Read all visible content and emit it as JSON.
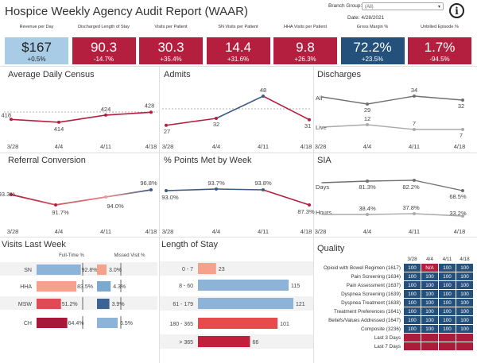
{
  "header": {
    "title": "Hospice Weekly Agency Audit Report (WAAR)",
    "branch_group_label": "Branch Group:",
    "branch_group_value": "(All)",
    "date_label": "Date: 4/28/2021",
    "info_glyph": "i"
  },
  "kpis": [
    {
      "label": "Revenue per Day",
      "value": "$167",
      "change": "+0.5%",
      "bg": "#a9cce6",
      "text": "#222222"
    },
    {
      "label": "Discharged Length of Stay",
      "value": "90.3",
      "change": "-14.7%",
      "bg": "#b51f3f",
      "text": "#ffffff"
    },
    {
      "label": "Visits per Patient",
      "value": "30.3",
      "change": "+35.4%",
      "bg": "#b51f3f",
      "text": "#ffffff"
    },
    {
      "label": "SN Visits per Patient",
      "value": "14.4",
      "change": "+31.6%",
      "bg": "#b51f3f",
      "text": "#ffffff"
    },
    {
      "label": "HHA Visits per Patient",
      "value": "9.8",
      "change": "+26.3%",
      "bg": "#b51f3f",
      "text": "#ffffff"
    },
    {
      "label": "Gross Margin %",
      "value": "72.2%",
      "change": "+23.5%",
      "bg": "#24507c",
      "text": "#ffffff"
    },
    {
      "label": "Unbilled Episode %",
      "value": "1.7%",
      "change": "-94.5%",
      "bg": "#b51f3f",
      "text": "#ffffff"
    }
  ],
  "colors": {
    "red": "#b51f3f",
    "navy": "#3d5a80",
    "light_blue": "#a9cce6",
    "mid_blue": "#5b8fc9",
    "gray_line": "#707070",
    "light_gray_line": "#aaaaaa",
    "salmon": "#f4a28c"
  },
  "chart_data": [
    {
      "type": "line",
      "title": "Average Daily Census",
      "categories": [
        "3/28",
        "4/4",
        "4/11",
        "4/18"
      ],
      "series": [
        {
          "values": [
            418,
            414,
            424,
            428
          ]
        }
      ],
      "labels": [
        "418",
        "414",
        "424",
        "428"
      ],
      "reference_line": true
    },
    {
      "type": "line",
      "title": "Admits",
      "categories": [
        "3/28",
        "4/4",
        "4/11",
        "4/18"
      ],
      "series": [
        {
          "values": [
            27,
            32,
            48,
            31
          ]
        }
      ],
      "labels": [
        "27",
        "32",
        "48",
        "31"
      ],
      "reference_line": true
    },
    {
      "type": "line",
      "title": "Discharges",
      "categories": [
        "3/28",
        "4/4",
        "4/11",
        "4/18"
      ],
      "series": [
        {
          "name": "All",
          "values": [
            null,
            29,
            34,
            32
          ]
        },
        {
          "name": "Live",
          "values": [
            null,
            12,
            7,
            7
          ]
        }
      ],
      "labels": {
        "All": [
          "29",
          "34",
          "32"
        ],
        "Live": [
          "12",
          "7",
          "7"
        ]
      }
    },
    {
      "type": "line",
      "title": "Referral Conversion",
      "categories": [
        "3/28",
        "4/4",
        "4/11",
        "4/18"
      ],
      "series": [
        {
          "values": [
            93.3,
            91.7,
            94.0,
            96.8
          ]
        }
      ],
      "labels": [
        "93.3%",
        "91.7%",
        "94.0%",
        "96.8%"
      ]
    },
    {
      "type": "line",
      "title": "% Points Met by Week",
      "categories": [
        "3/28",
        "4/4",
        "4/11",
        "4/18"
      ],
      "series": [
        {
          "values": [
            93.0,
            93.7,
            93.8,
            87.3
          ]
        }
      ],
      "labels": [
        "93.0%",
        "93.7%",
        "93.8%",
        "87.3%"
      ]
    },
    {
      "type": "line",
      "title": "SIA",
      "categories": [
        "3/28",
        "4/4",
        "4/11",
        "4/18"
      ],
      "series": [
        {
          "name": "Days",
          "values": [
            null,
            81.3,
            82.2,
            68.5
          ]
        },
        {
          "name": "Hours",
          "values": [
            null,
            38.4,
            37.8,
            33.2
          ]
        }
      ],
      "labels": {
        "Days": [
          "81.3%",
          "82.2%",
          "68.5%"
        ],
        "Hours": [
          "38.4%",
          "37.8%",
          "33.2%"
        ]
      }
    },
    {
      "type": "bar",
      "title": "Visits Last Week",
      "categories": [
        "SN",
        "HHA",
        "MSW",
        "CH"
      ],
      "series": [
        {
          "name": "Full-Time %",
          "values": [
            92.8,
            83.5,
            51.2,
            64.4
          ],
          "labels": [
            "92.8%",
            "83.5%",
            "51.2%",
            "64.4%"
          ]
        },
        {
          "name": "Missed Visit %",
          "values": [
            3.0,
            4.3,
            3.9,
            6.5
          ],
          "labels": [
            "3.0%",
            "4.3%",
            "3.9%",
            "6.5%"
          ]
        }
      ]
    },
    {
      "type": "bar",
      "title": "Length of Stay",
      "categories": [
        "0 - 7",
        "8 - 60",
        "61 - 179",
        "180 - 365",
        "> 365"
      ],
      "values": [
        23,
        115,
        121,
        101,
        66
      ]
    }
  ],
  "quality": {
    "title": "Quality",
    "columns": [
      "3/28",
      "4/4",
      "4/11",
      "4/18"
    ],
    "rows": [
      {
        "label": "Opioid with Bowel Regimen (1617)",
        "values": [
          "100",
          "N/A",
          "100",
          "100"
        ]
      },
      {
        "label": "Pain Screening (1634)",
        "values": [
          "100",
          "100",
          "100",
          "100"
        ]
      },
      {
        "label": "Pain Assessment (1637)",
        "values": [
          "100",
          "100",
          "100",
          "100"
        ]
      },
      {
        "label": "Dyspnea Screening (1639)",
        "values": [
          "100",
          "100",
          "100",
          "100"
        ]
      },
      {
        "label": "Dyspnea Treatment (1638)",
        "values": [
          "100",
          "100",
          "100",
          "100"
        ]
      },
      {
        "label": "Treatment Preferences (1641)",
        "values": [
          "100",
          "100",
          "100",
          "100"
        ]
      },
      {
        "label": "Beliefs/Values Addressed (1647)",
        "values": [
          "100",
          "100",
          "100",
          "100"
        ]
      },
      {
        "label": "Composite (3236)",
        "values": [
          "100",
          "100",
          "100",
          "100"
        ]
      },
      {
        "label": "Last 3 Days",
        "values": [
          "",
          "",
          "",
          ""
        ]
      },
      {
        "label": "Last 7 Days",
        "values": [
          "",
          "",
          "",
          ""
        ]
      }
    ]
  }
}
